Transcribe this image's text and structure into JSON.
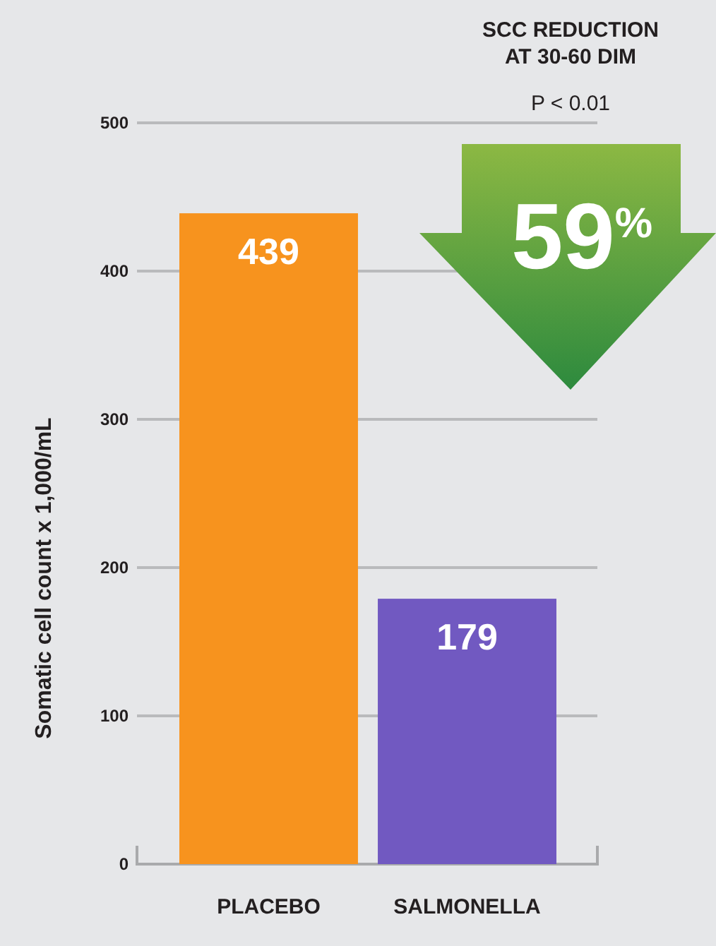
{
  "chart_data": {
    "type": "bar",
    "ylabel": "Somatic cell count x 1,000/mL",
    "categories": [
      "PLACEBO",
      "SALMONELLA"
    ],
    "values": [
      439,
      179
    ],
    "colors": [
      "#f7931e",
      "#7159c1"
    ],
    "data_labels": true,
    "ylim": [
      0,
      500
    ],
    "yticks": [
      0,
      100,
      200,
      300,
      400,
      500
    ],
    "grid": "y",
    "annotations": [
      "SCC REDUCTION AT 30-60 DIM",
      "P < 0.01",
      "59%"
    ]
  }
}
